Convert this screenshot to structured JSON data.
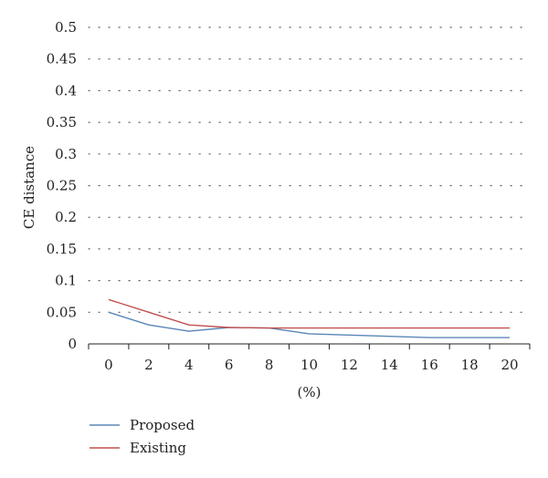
{
  "chart_data": {
    "type": "line",
    "x": [
      0,
      2,
      4,
      6,
      8,
      10,
      12,
      14,
      16,
      18,
      20
    ],
    "series": [
      {
        "name": "Proposed",
        "color": "#5b86b8",
        "values": [
          0.05,
          0.03,
          0.02,
          0.026,
          0.025,
          0.016,
          0.014,
          0.012,
          0.01,
          0.01,
          0.01
        ]
      },
      {
        "name": "Existing",
        "color": "#c2504f",
        "values": [
          0.07,
          0.05,
          0.03,
          0.026,
          0.025,
          0.025,
          0.025,
          0.025,
          0.025,
          0.025,
          0.025
        ]
      }
    ],
    "xlabel": "(%)",
    "ylabel": "CE distance",
    "xticks": [
      "0",
      "2",
      "4",
      "6",
      "8",
      "10",
      "12",
      "14",
      "16",
      "18",
      "20"
    ],
    "yticks": [
      "0",
      "0.05",
      "0.1",
      "0.15",
      "0.2",
      "0.25",
      "0.3",
      "0.35",
      "0.4",
      "0.45",
      "0.5"
    ],
    "xlim": [
      -1,
      21
    ],
    "ylim": [
      0,
      0.5
    ],
    "grid": "horizontal-dotted",
    "legend_position": "bottom-left"
  }
}
